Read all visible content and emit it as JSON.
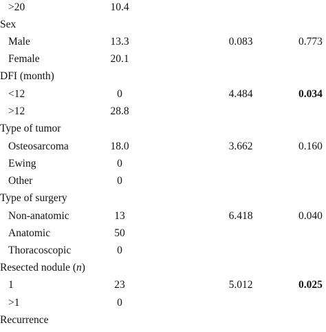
{
  "rows": [
    {
      "label": ">20",
      "value": "10.4",
      "stat": "",
      "p": "",
      "p_bold": false
    },
    {
      "label": "Sex",
      "value": "",
      "stat": "",
      "p": "",
      "p_bold": false
    },
    {
      "label": "Male",
      "value": "13.3",
      "stat": "0.083",
      "p": "0.773",
      "p_bold": false
    },
    {
      "label": "Female",
      "value": "20.1",
      "stat": "",
      "p": "",
      "p_bold": false
    },
    {
      "label": "DFI (month)",
      "value": "",
      "stat": "",
      "p": "",
      "p_bold": false
    },
    {
      "label": "<12",
      "value": "0",
      "stat": "4.484",
      "p": "0.034",
      "p_bold": true
    },
    {
      "label": ">12",
      "value": "28.8",
      "stat": "",
      "p": "",
      "p_bold": false
    },
    {
      "label": "Type of tumor",
      "value": "",
      "stat": "",
      "p": "",
      "p_bold": false
    },
    {
      "label": "Osteosarcoma",
      "value": "18.0",
      "stat": "3.662",
      "p": "0.160",
      "p_bold": false
    },
    {
      "label": "Ewing",
      "value": "0",
      "stat": "",
      "p": "",
      "p_bold": false
    },
    {
      "label": "Other",
      "value": "0",
      "stat": "",
      "p": "",
      "p_bold": false
    },
    {
      "label": "Type of surgery",
      "value": "",
      "stat": "",
      "p": "",
      "p_bold": false
    },
    {
      "label": "Non-anatomic",
      "value": "13",
      "stat": "6.418",
      "p": "0.040",
      "p_bold": false
    },
    {
      "label": "Anatomic",
      "value": "50",
      "stat": "",
      "p": "",
      "p_bold": false
    },
    {
      "label": "Thoracoscopic",
      "value": "0",
      "stat": "",
      "p": "",
      "p_bold": false
    },
    {
      "label_prefix": "Resected nodule (",
      "label_italic": "n",
      "label_suffix": ")",
      "value": "",
      "stat": "",
      "p": "",
      "p_bold": false
    },
    {
      "label": "1",
      "value": "23",
      "stat": "5.012",
      "p": "0.025",
      "p_bold": true
    },
    {
      "label": ">1",
      "value": "0",
      "stat": "",
      "p": "",
      "p_bold": false
    },
    {
      "label": "Recurrence",
      "value": "",
      "stat": "",
      "p": "",
      "p_bold": false
    }
  ]
}
